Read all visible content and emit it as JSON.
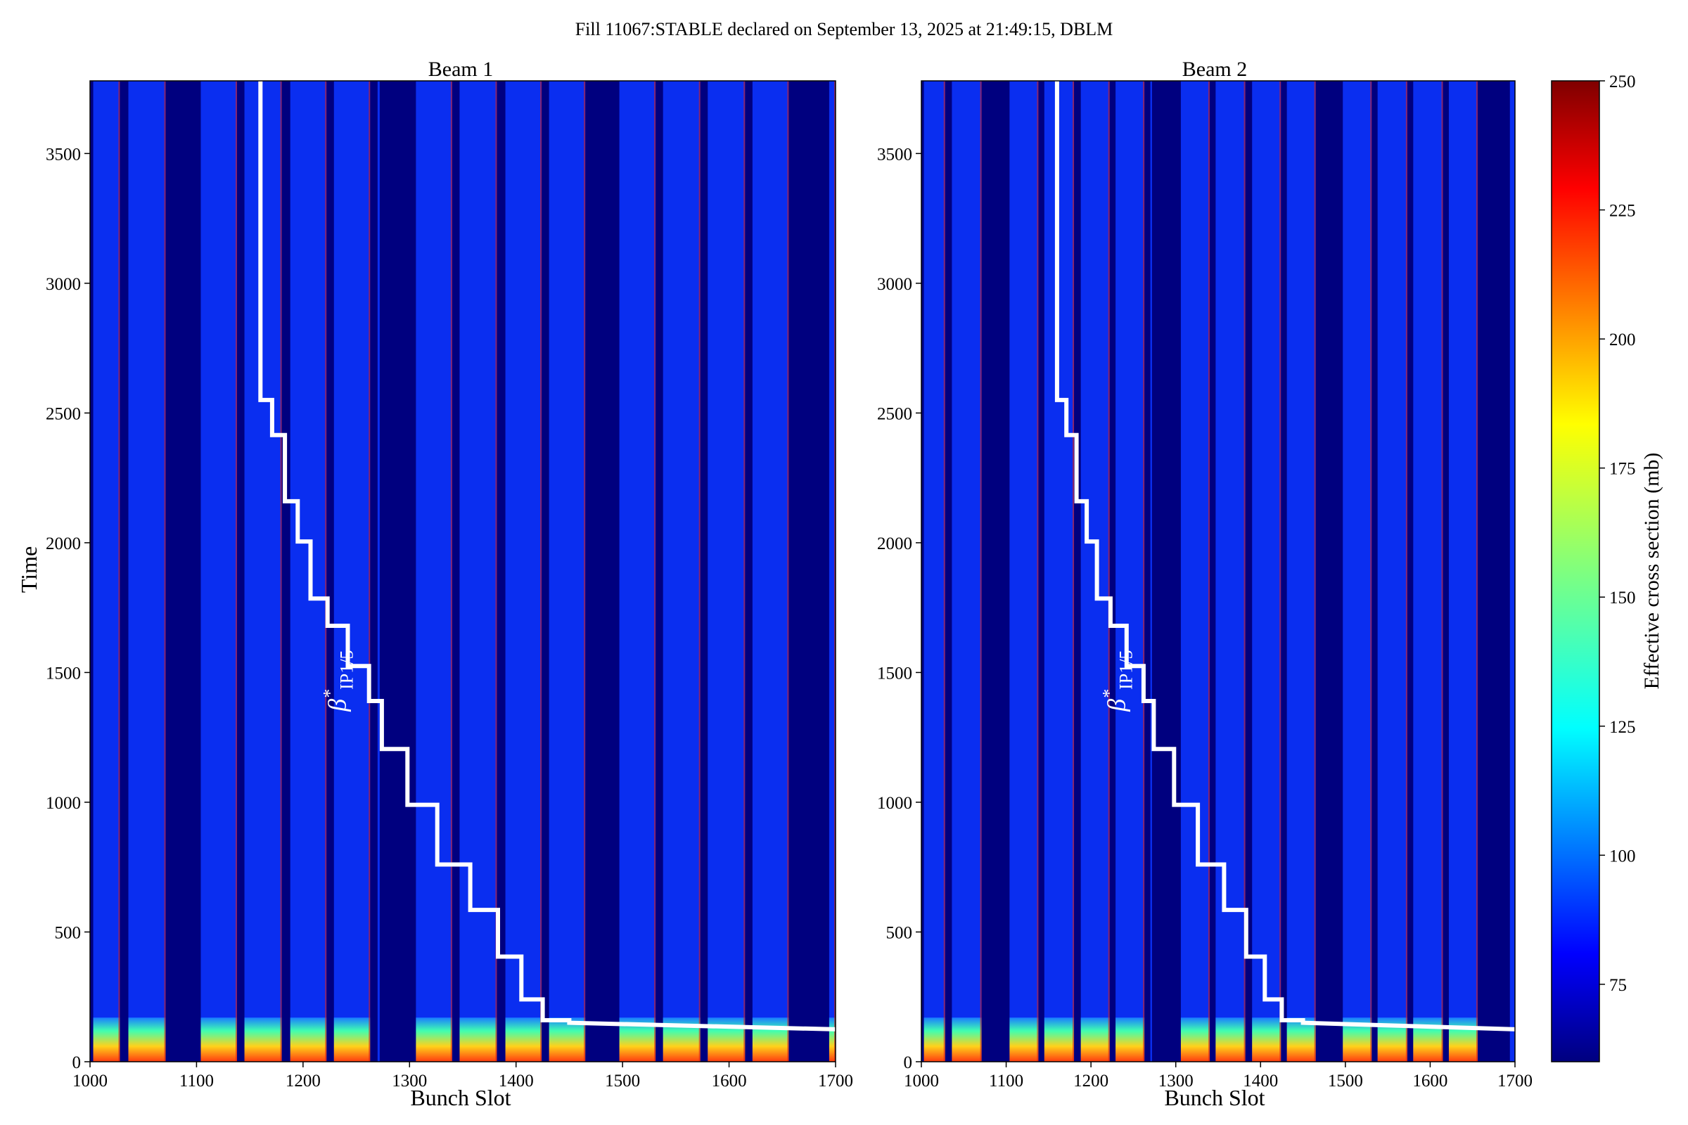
{
  "figure": {
    "title": "Fill 11067:STABLE declared on September 13, 2025 at 21:49:15, DBLM"
  },
  "colorbar": {
    "label": "Effective cross section (mb)",
    "range": [
      60,
      250
    ],
    "ticks": [
      "75",
      "100",
      "125",
      "150",
      "175",
      "200",
      "225",
      "250"
    ],
    "colormap": "jet"
  },
  "annotation": {
    "symbol": "β",
    "superscript": "*",
    "subscript": "IP1/5"
  },
  "colors": {
    "line": "#ffffff",
    "background_gap": "#00007f",
    "train_base": "#0a2ef0"
  },
  "chart_data": [
    {
      "type": "heatmap",
      "title": "Beam 1",
      "xlabel": "Bunch Slot",
      "ylabel": "Time",
      "xlim": [
        1000,
        1700
      ],
      "ylim": [
        0,
        3780
      ],
      "xticks": [
        "1000",
        "1100",
        "1200",
        "1300",
        "1400",
        "1500",
        "1600",
        "1700"
      ],
      "yticks": [
        "0",
        "500",
        "1000",
        "1500",
        "2000",
        "2500",
        "3000",
        "3500"
      ],
      "filled_slot_ranges": [
        [
          1003,
          1028
        ],
        [
          1036,
          1071
        ],
        [
          1104,
          1138
        ],
        [
          1145,
          1180
        ],
        [
          1188,
          1222
        ],
        [
          1229,
          1263
        ],
        [
          1270,
          1272
        ],
        [
          1306,
          1340
        ],
        [
          1347,
          1382
        ],
        [
          1390,
          1424
        ],
        [
          1431,
          1465
        ],
        [
          1497,
          1531
        ],
        [
          1538,
          1573
        ],
        [
          1580,
          1615
        ],
        [
          1622,
          1656
        ],
        [
          1694,
          1700
        ]
      ],
      "beta_star_step_line": {
        "x": [
          1160,
          1160,
          1171,
          1171,
          1183,
          1183,
          1195,
          1195,
          1207,
          1207,
          1223,
          1223,
          1242,
          1242,
          1262,
          1262,
          1274,
          1274,
          1298,
          1298,
          1326,
          1326,
          1357,
          1357,
          1383,
          1383,
          1405,
          1405,
          1425,
          1425,
          1450,
          1450,
          1700
        ],
        "y": [
          3780,
          2550,
          2550,
          2415,
          2415,
          2160,
          2160,
          2005,
          2005,
          1785,
          1785,
          1680,
          1680,
          1525,
          1525,
          1390,
          1390,
          1205,
          1205,
          990,
          990,
          760,
          760,
          585,
          585,
          405,
          405,
          240,
          240,
          160,
          160,
          150,
          125
        ]
      }
    },
    {
      "type": "heatmap",
      "title": "Beam 2",
      "xlabel": "Bunch Slot",
      "ylabel": "",
      "xlim": [
        1000,
        1700
      ],
      "ylim": [
        0,
        3780
      ],
      "xticks": [
        "1000",
        "1100",
        "1200",
        "1300",
        "1400",
        "1500",
        "1600",
        "1700"
      ],
      "yticks": [
        "0",
        "500",
        "1000",
        "1500",
        "2000",
        "2500",
        "3000",
        "3500"
      ],
      "filled_slot_ranges": [
        [
          1003,
          1028
        ],
        [
          1036,
          1071
        ],
        [
          1104,
          1138
        ],
        [
          1145,
          1180
        ],
        [
          1188,
          1222
        ],
        [
          1229,
          1263
        ],
        [
          1270,
          1272
        ],
        [
          1306,
          1340
        ],
        [
          1347,
          1382
        ],
        [
          1390,
          1424
        ],
        [
          1431,
          1465
        ],
        [
          1497,
          1531
        ],
        [
          1538,
          1573
        ],
        [
          1580,
          1615
        ],
        [
          1622,
          1656
        ],
        [
          1694,
          1700
        ]
      ],
      "beta_star_step_line": {
        "x": [
          1160,
          1160,
          1171,
          1171,
          1183,
          1183,
          1195,
          1195,
          1207,
          1207,
          1223,
          1223,
          1242,
          1242,
          1262,
          1262,
          1274,
          1274,
          1298,
          1298,
          1326,
          1326,
          1357,
          1357,
          1383,
          1383,
          1405,
          1405,
          1425,
          1425,
          1450,
          1450,
          1700
        ],
        "y": [
          3780,
          2550,
          2550,
          2415,
          2415,
          2160,
          2160,
          2005,
          2005,
          1785,
          1785,
          1680,
          1680,
          1525,
          1525,
          1390,
          1390,
          1205,
          1205,
          990,
          990,
          760,
          760,
          585,
          585,
          405,
          405,
          240,
          240,
          160,
          160,
          150,
          125
        ]
      }
    }
  ]
}
